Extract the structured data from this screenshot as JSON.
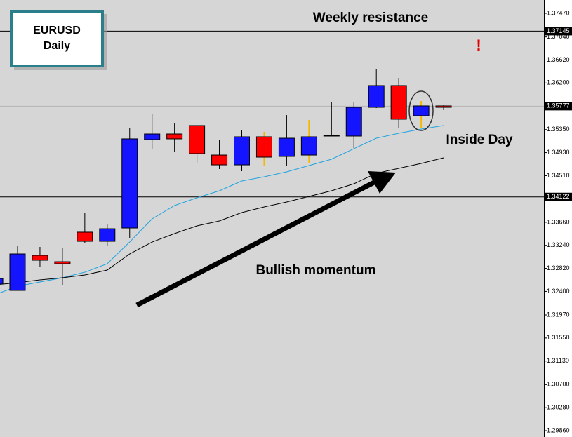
{
  "chart_data": {
    "type": "candlestick",
    "symbol": "EURUSD",
    "timeframe": "Daily",
    "annotations": {
      "resistance": "Weekly resistance",
      "pattern": "Inside Day",
      "trend": "Bullish momentum",
      "alert": "!"
    },
    "up_color": "#1414ff",
    "down_color": "#ff0000",
    "wick_colors": [
      "#000000",
      "#000000",
      "#000000",
      "#000000",
      "#000000",
      "#000000",
      "#000000",
      "#000000",
      "#000000",
      "#000000",
      "#000000",
      "#000000",
      "#f5b800",
      "#000000",
      "#f5b800",
      "#000000",
      "#000000",
      "#000000",
      "#000000",
      "#f5b800",
      "#000000"
    ],
    "series": [
      {
        "open": [
          1.32533,
          1.32418,
          1.33057,
          1.32942,
          1.3348,
          1.33313,
          1.33556,
          1.35168,
          1.3527,
          1.35424,
          1.34886,
          1.34707,
          1.35219,
          1.34861,
          1.34886,
          1.35232,
          1.35232,
          1.35756,
          1.36153,
          1.35603,
          1.35782
        ],
        "high": [
          1.32661,
          1.33236,
          1.33211,
          1.33185,
          1.33825,
          1.3362,
          1.35385,
          1.35641,
          1.35462,
          1.35424,
          1.35155,
          1.35347,
          1.35308,
          1.35615,
          1.35526,
          1.35846,
          1.35858,
          1.36447,
          1.36293,
          1.35871,
          1.35794
        ],
        "low": [
          1.32495,
          1.32418,
          1.32853,
          1.3252,
          1.33275,
          1.33236,
          1.33364,
          1.34989,
          1.3495,
          1.34746,
          1.34631,
          1.34592,
          1.34682,
          1.34682,
          1.34733,
          1.35232,
          1.35014,
          1.35743,
          1.35372,
          1.35372,
          1.35705
        ],
        "close": [
          1.32635,
          1.33083,
          1.32968,
          1.32904,
          1.33313,
          1.33543,
          1.35181,
          1.3527,
          1.35181,
          1.34912,
          1.34707,
          1.35219,
          1.34848,
          1.35193,
          1.35219,
          1.35245,
          1.35756,
          1.36153,
          1.35539,
          1.35782,
          1.35756
        ]
      }
    ],
    "moving_averages": [
      {
        "color": "#1fa3e0",
        "values": [
          1.32341,
          1.32495,
          1.32571,
          1.32648,
          1.3275,
          1.32904,
          1.333,
          1.33723,
          1.33966,
          1.34106,
          1.34234,
          1.34413,
          1.3449,
          1.34579,
          1.34695,
          1.3481,
          1.35002,
          1.35193,
          1.35283,
          1.3536,
          1.35424
        ]
      },
      {
        "color": "#000000",
        "values": [
          1.3252,
          1.32559,
          1.3261,
          1.32648,
          1.32699,
          1.32789,
          1.33083,
          1.333,
          1.33454,
          1.33595,
          1.33684,
          1.33838,
          1.3394,
          1.34029,
          1.34132,
          1.34234,
          1.34362,
          1.34554,
          1.34643,
          1.34733,
          1.34835
        ]
      }
    ],
    "levels": [
      {
        "value": 1.37145,
        "color": "#000000"
      },
      {
        "value": 1.34122,
        "color": "#000000"
      },
      {
        "value": 1.35777,
        "color": "#b4b4b4"
      }
    ],
    "ylim": [
      1.29745,
      1.37713
    ],
    "yticks": [
      {
        "value": 1.3747,
        "label": "1.37470"
      },
      {
        "value": 1.3704,
        "label": "1.37040"
      },
      {
        "value": 1.3662,
        "label": "1.36620"
      },
      {
        "value": 1.362,
        "label": "1.36200"
      },
      {
        "value": 1.3535,
        "label": "1.35350"
      },
      {
        "value": 1.3493,
        "label": "1.34930"
      },
      {
        "value": 1.3451,
        "label": "1.34510"
      },
      {
        "value": 1.3366,
        "label": "1.33660"
      },
      {
        "value": 1.3324,
        "label": "1.33240"
      },
      {
        "value": 1.3282,
        "label": "1.32820"
      },
      {
        "value": 1.324,
        "label": "1.32400"
      },
      {
        "value": 1.3197,
        "label": "1.31970"
      },
      {
        "value": 1.3155,
        "label": "1.31550"
      },
      {
        "value": 1.3113,
        "label": "1.31130"
      },
      {
        "value": 1.307,
        "label": "1.30700"
      },
      {
        "value": 1.3028,
        "label": "1.30280"
      },
      {
        "value": 1.2986,
        "label": "1.29860"
      }
    ]
  }
}
